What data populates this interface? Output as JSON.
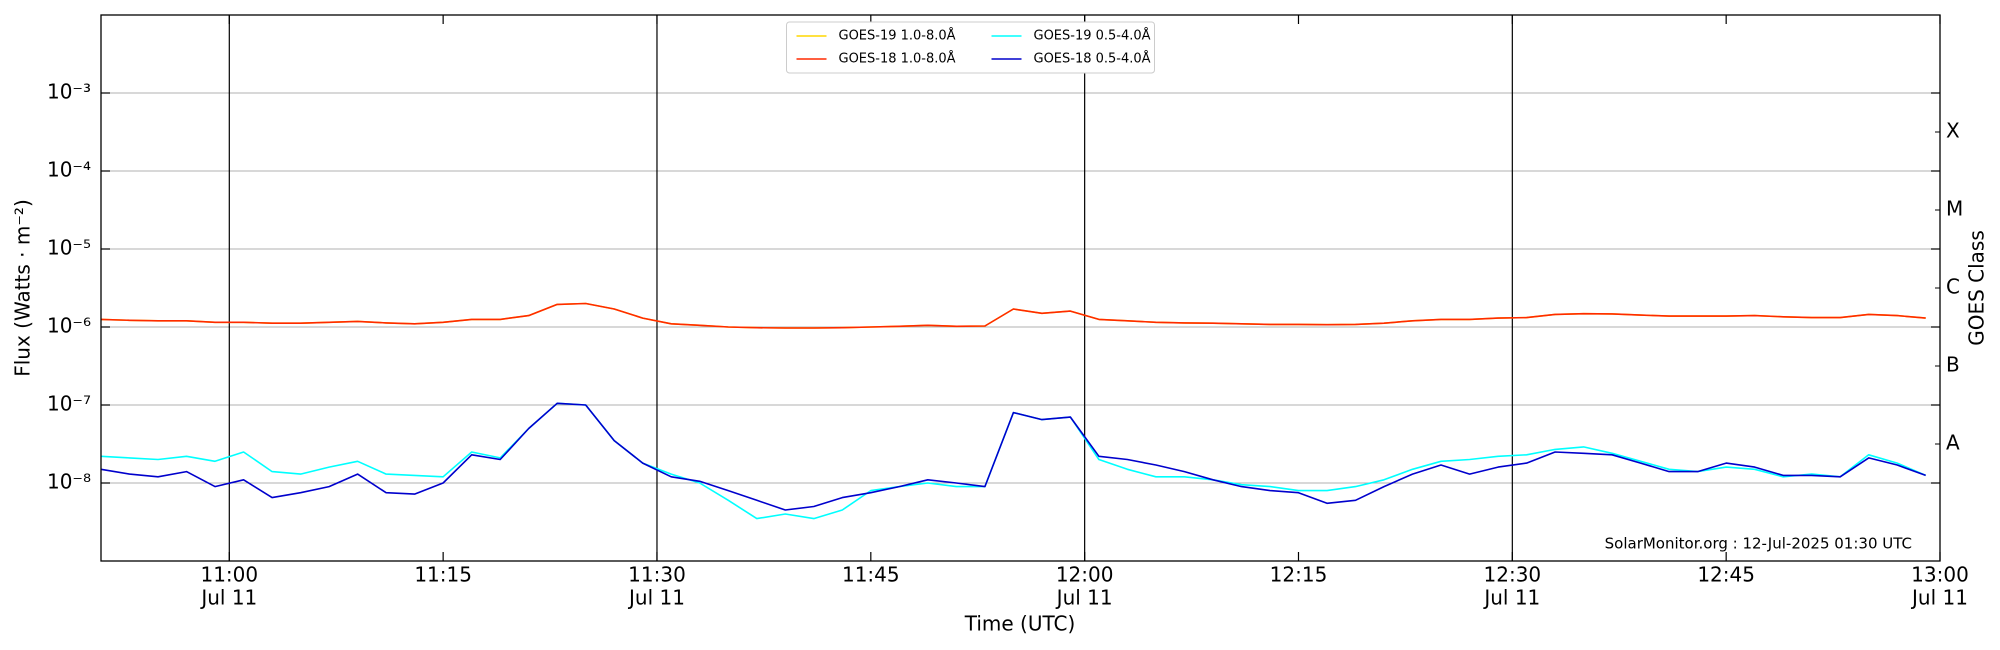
{
  "chart_data": {
    "type": "line",
    "xlabel": "Time (UTC)",
    "ylabel": "Flux (Watts · m⁻²)",
    "y2label": "GOES Class",
    "annotation": "SolarMonitor.org : 12-Jul-2025 01:30 UTC",
    "log_y": true,
    "legend": "upper center",
    "x": [
      "10:51",
      "10:53",
      "10:55",
      "10:57",
      "10:59",
      "11:01",
      "11:03",
      "11:05",
      "11:07",
      "11:09",
      "11:11",
      "11:13",
      "11:15",
      "11:17",
      "11:19",
      "11:21",
      "11:23",
      "11:25",
      "11:27",
      "11:29",
      "11:31",
      "11:33",
      "11:35",
      "11:37",
      "11:39",
      "11:41",
      "11:43",
      "11:45",
      "11:47",
      "11:49",
      "11:51",
      "11:53",
      "11:55",
      "11:57",
      "11:59",
      "12:01",
      "12:03",
      "12:05",
      "12:07",
      "12:09",
      "12:11",
      "12:13",
      "12:15",
      "12:17",
      "12:19",
      "12:21",
      "12:23",
      "12:25",
      "12:27",
      "12:29",
      "12:31",
      "12:33",
      "12:35",
      "12:37",
      "12:39",
      "12:41",
      "12:43",
      "12:45",
      "12:47",
      "12:49",
      "12:51",
      "12:53",
      "12:55",
      "12:57",
      "12:59"
    ],
    "series": [
      {
        "name": "GOES-19 1.0-8.0Å",
        "color": "#ffd700",
        "values": [
          1.25e-06,
          1.22e-06,
          1.2e-06,
          1.2e-06,
          1.15e-06,
          1.15e-06,
          1.12e-06,
          1.12e-06,
          1.15e-06,
          1.18e-06,
          1.13e-06,
          1.1e-06,
          1.15e-06,
          1.25e-06,
          1.25e-06,
          1.4e-06,
          1.95e-06,
          2e-06,
          1.7e-06,
          1.3e-06,
          1.1e-06,
          1.05e-06,
          1e-06,
          9.8e-07,
          9.7e-07,
          9.7e-07,
          9.8e-07,
          1e-06,
          1.02e-06,
          1.05e-06,
          1.02e-06,
          1.03e-06,
          1.7e-06,
          1.5e-06,
          1.6e-06,
          1.25e-06,
          1.2e-06,
          1.15e-06,
          1.13e-06,
          1.12e-06,
          1.1e-06,
          1.08e-06,
          1.08e-06,
          1.07e-06,
          1.08e-06,
          1.12e-06,
          1.2e-06,
          1.25e-06,
          1.25e-06,
          1.3e-06,
          1.32e-06,
          1.45e-06,
          1.48e-06,
          1.47e-06,
          1.42e-06,
          1.38e-06,
          1.38e-06,
          1.38e-06,
          1.4e-06,
          1.35e-06,
          1.32e-06,
          1.32e-06,
          1.45e-06,
          1.4e-06,
          1.3e-06
        ]
      },
      {
        "name": "GOES-18 1.0-8.0Å",
        "color": "#ff2a00",
        "values": [
          1.25e-06,
          1.22e-06,
          1.2e-06,
          1.2e-06,
          1.15e-06,
          1.15e-06,
          1.12e-06,
          1.12e-06,
          1.15e-06,
          1.18e-06,
          1.13e-06,
          1.1e-06,
          1.15e-06,
          1.25e-06,
          1.25e-06,
          1.4e-06,
          1.95e-06,
          2e-06,
          1.7e-06,
          1.3e-06,
          1.1e-06,
          1.05e-06,
          1e-06,
          9.8e-07,
          9.7e-07,
          9.7e-07,
          9.8e-07,
          1e-06,
          1.02e-06,
          1.05e-06,
          1.02e-06,
          1.03e-06,
          1.7e-06,
          1.5e-06,
          1.6e-06,
          1.25e-06,
          1.2e-06,
          1.15e-06,
          1.13e-06,
          1.12e-06,
          1.1e-06,
          1.08e-06,
          1.08e-06,
          1.07e-06,
          1.08e-06,
          1.12e-06,
          1.2e-06,
          1.25e-06,
          1.25e-06,
          1.3e-06,
          1.32e-06,
          1.45e-06,
          1.48e-06,
          1.47e-06,
          1.42e-06,
          1.38e-06,
          1.38e-06,
          1.38e-06,
          1.4e-06,
          1.35e-06,
          1.32e-06,
          1.32e-06,
          1.45e-06,
          1.4e-06,
          1.3e-06
        ]
      },
      {
        "name": "GOES-19 0.5-4.0Å",
        "color": "#00ffff",
        "values": [
          2.2e-08,
          2.1e-08,
          2e-08,
          2.2e-08,
          1.9e-08,
          2.5e-08,
          1.4e-08,
          1.3e-08,
          1.6e-08,
          1.9e-08,
          1.3e-08,
          1.25e-08,
          1.2e-08,
          2.5e-08,
          2.1e-08,
          5e-08,
          1.05e-07,
          1e-07,
          3.5e-08,
          1.8e-08,
          1.3e-08,
          1e-08,
          6e-09,
          3.5e-09,
          4e-09,
          3.5e-09,
          4.5e-09,
          8e-09,
          9e-09,
          1e-08,
          9e-09,
          9e-09,
          8e-08,
          6.5e-08,
          7e-08,
          2e-08,
          1.5e-08,
          1.2e-08,
          1.2e-08,
          1.1e-08,
          9.5e-09,
          9e-09,
          8e-09,
          8e-09,
          9e-09,
          1.1e-08,
          1.5e-08,
          1.9e-08,
          2e-08,
          2.2e-08,
          2.3e-08,
          2.7e-08,
          2.9e-08,
          2.4e-08,
          1.9e-08,
          1.5e-08,
          1.4e-08,
          1.6e-08,
          1.5e-08,
          1.2e-08,
          1.3e-08,
          1.2e-08,
          2.3e-08,
          1.8e-08,
          1.25e-08
        ]
      },
      {
        "name": "GOES-18 0.5-4.0Å",
        "color": "#0000cc",
        "values": [
          1.5e-08,
          1.3e-08,
          1.2e-08,
          1.4e-08,
          9e-09,
          1.1e-08,
          6.5e-09,
          7.5e-09,
          9e-09,
          1.3e-08,
          7.5e-09,
          7.2e-09,
          1e-08,
          2.3e-08,
          2e-08,
          5e-08,
          1.05e-07,
          1e-07,
          3.5e-08,
          1.8e-08,
          1.2e-08,
          1.05e-08,
          8e-09,
          6e-09,
          4.5e-09,
          5e-09,
          6.5e-09,
          7.5e-09,
          9e-09,
          1.1e-08,
          1e-08,
          9e-09,
          8e-08,
          6.5e-08,
          7e-08,
          2.2e-08,
          2e-08,
          1.7e-08,
          1.4e-08,
          1.1e-08,
          9e-09,
          8e-09,
          7.5e-09,
          5.5e-09,
          6e-09,
          9e-09,
          1.3e-08,
          1.7e-08,
          1.3e-08,
          1.6e-08,
          1.8e-08,
          2.5e-08,
          2.4e-08,
          2.3e-08,
          1.8e-08,
          1.4e-08,
          1.4e-08,
          1.8e-08,
          1.6e-08,
          1.25e-08,
          1.25e-08,
          1.2e-08,
          2.1e-08,
          1.7e-08,
          1.25e-08
        ]
      }
    ],
    "xlim": [
      "10:51",
      "13:00"
    ],
    "xticks": [
      {
        "value": "11:00",
        "label": [
          "11:00",
          "Jul 11"
        ]
      },
      "11:15",
      {
        "value": "11:30",
        "label": [
          "11:30",
          "Jul 11"
        ]
      },
      "11:45",
      {
        "value": "12:00",
        "label": [
          "12:00",
          "Jul 11"
        ]
      },
      "12:15",
      {
        "value": "12:30",
        "label": [
          "12:30",
          "Jul 11"
        ]
      },
      "12:45",
      {
        "value": "13:00",
        "label": [
          "13:00",
          "Jul 11"
        ]
      }
    ],
    "vlines": [
      "11:00",
      "11:30",
      "12:00",
      "12:30"
    ],
    "ylim": [
      1e-09,
      0.01
    ],
    "yticks": [
      {
        "value": 1e-08,
        "label": "10⁻⁸"
      },
      {
        "value": 1e-07,
        "label": "10⁻⁷"
      },
      {
        "value": 1e-06,
        "label": "10⁻⁶"
      },
      {
        "value": 1e-05,
        "label": "10⁻⁵"
      },
      {
        "value": 0.0001,
        "label": "10⁻⁴"
      },
      {
        "value": 0.001,
        "label": "10⁻³"
      }
    ],
    "y2lim": [
      1e-09,
      0.01
    ],
    "y2ticks": [
      {
        "value": 3.162e-08,
        "label": "A"
      },
      {
        "value": 3.162e-07,
        "label": "B"
      },
      {
        "value": 3.162e-06,
        "label": "C"
      },
      {
        "value": 3.162e-05,
        "label": "M"
      },
      {
        "value": 0.0003162,
        "label": "X"
      }
    ],
    "grid": true
  }
}
